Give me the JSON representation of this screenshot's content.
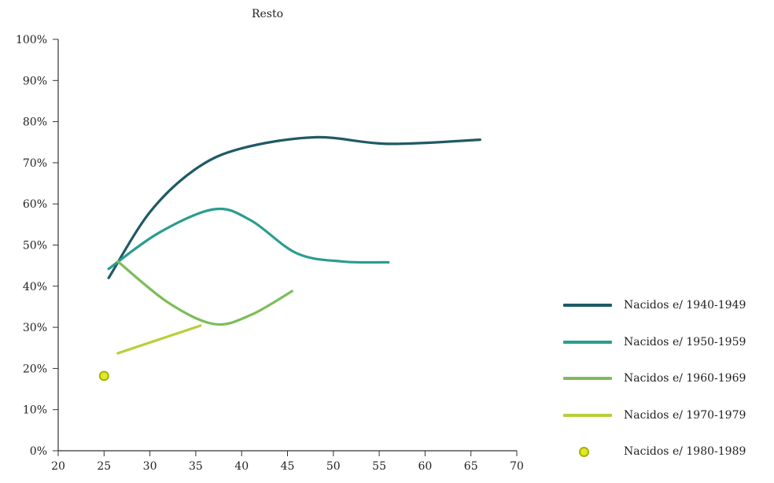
{
  "chart_data": {
    "type": "line",
    "title": "Resto",
    "xlabel": "",
    "ylabel": "",
    "xlim": [
      20,
      70
    ],
    "ylim": [
      0,
      100
    ],
    "x_ticks": [
      "20",
      "25",
      "30",
      "35",
      "40",
      "45",
      "50",
      "55",
      "60",
      "65",
      "70"
    ],
    "y_ticks": [
      "0%",
      "10%",
      "20%",
      "30%",
      "40%",
      "50%",
      "60%",
      "70%",
      "80%",
      "90%",
      "100%"
    ],
    "grid": false,
    "legend_position": "right",
    "series": [
      {
        "name": "Nacidos e/ 1940-1949",
        "kind": "line",
        "color": "#1f5a64",
        "x": [
          25.5,
          30,
          35,
          40,
          48,
          56,
          66
        ],
        "y": [
          42,
          58,
          68.5,
          73.5,
          76.2,
          74.6,
          75.6
        ]
      },
      {
        "name": "Nacidos e/ 1950-1959",
        "kind": "line",
        "color": "#2a9d8f",
        "x": [
          25.5,
          31,
          37,
          41,
          46,
          51,
          56
        ],
        "y": [
          44.2,
          53,
          58.7,
          56,
          48,
          46,
          45.8
        ]
      },
      {
        "name": "Nacidos e/ 1960-1969",
        "kind": "line",
        "color": "#7cbd5a",
        "x": [
          26.5,
          32,
          37,
          41,
          45.5
        ],
        "y": [
          46,
          36,
          30.8,
          33,
          38.8
        ]
      },
      {
        "name": "Nacidos e/ 1970-1979",
        "kind": "line",
        "color": "#b8cf3a",
        "x": [
          26.5,
          35.5
        ],
        "y": [
          23.7,
          30.4
        ]
      },
      {
        "name": "Nacidos e/ 1980-1989",
        "kind": "point",
        "color": "#e2e82a",
        "edge": "#a3b300",
        "x": [
          25
        ],
        "y": [
          18.2
        ]
      }
    ]
  }
}
